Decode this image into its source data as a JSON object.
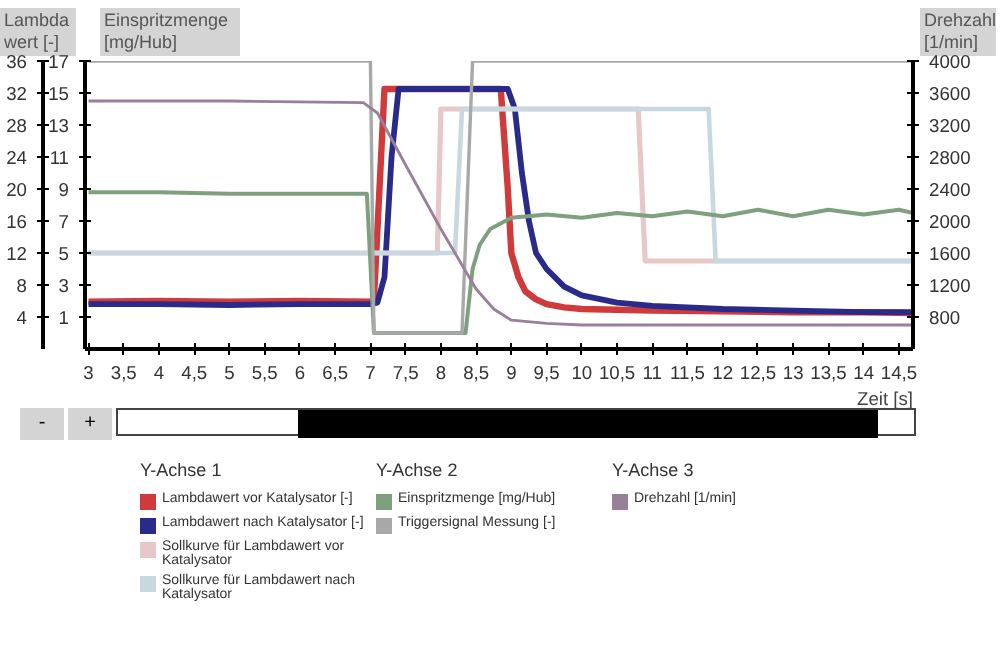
{
  "chart_data": {
    "type": "line",
    "ylabel": "Lambdawert [-]",
    "y2label": "Einspritzmenge [mg/Hub]",
    "y3label": "Drehzahl [1/min]",
    "xlabel": "Zeit [s]",
    "annotations": [
      "-",
      "+",
      "Y-Achse 1",
      "Y-Achse 2",
      "Y-Achse 3"
    ],
    "xlim": [
      2.95,
      14.7
    ],
    "xticks": [
      3,
      {
        "value": 3.5,
        "label": "3,5"
      },
      4,
      {
        "value": 4.5,
        "label": "4,5"
      },
      5,
      {
        "value": 5.5,
        "label": "5,5"
      },
      6,
      {
        "value": 6.5,
        "label": "6,5"
      },
      7,
      {
        "value": 7.5,
        "label": "7,5"
      },
      8,
      {
        "value": 8.5,
        "label": "8,5"
      },
      9,
      {
        "value": 9.5,
        "label": "9,5"
      },
      10,
      {
        "value": 10.5,
        "label": "10,5"
      },
      11,
      {
        "value": 11.5,
        "label": "11,5"
      },
      12,
      {
        "value": 12.5,
        "label": "12,5"
      },
      13,
      {
        "value": 13.5,
        "label": "13,5"
      },
      14,
      {
        "value": 14.5,
        "label": "14,5"
      }
    ],
    "ylim": [
      0,
      36
    ],
    "yticks": [
      4,
      8,
      12,
      16,
      20,
      24,
      28,
      32,
      36
    ],
    "y2lim": [
      -1,
      17
    ],
    "y2ticks": [
      1,
      3,
      5,
      7,
      9,
      11,
      13,
      15,
      17
    ],
    "y3lim": [
      400,
      4000
    ],
    "y3ticks": [
      800,
      1200,
      1600,
      2000,
      2400,
      2800,
      3200,
      3600,
      4000
    ],
    "grid": false,
    "legend": "bottom",
    "marker": "none",
    "line_style": "solid",
    "series": [
      {
        "name": "Lambdawert vor Katalysator [-]",
        "color": "#d03a3a",
        "axis": "y",
        "x": [
          3,
          4,
          5,
          6,
          7,
          7.05,
          7.2,
          8.85,
          8.95,
          9.0,
          9.1,
          9.2,
          9.35,
          9.5,
          9.75,
          10,
          10.5,
          11,
          12,
          13,
          14,
          14.7
        ],
        "values": [
          5.9,
          6.0,
          5.9,
          6.0,
          5.9,
          6.2,
          32.5,
          32.5,
          20,
          12,
          9,
          7.2,
          6.2,
          5.6,
          5.2,
          5.0,
          4.9,
          4.8,
          4.7,
          4.6,
          4.6,
          4.5
        ]
      },
      {
        "name": "Lambdawert nach Katalysator [-]",
        "color": "#2a2a8a",
        "axis": "y",
        "x": [
          3,
          4,
          5,
          6,
          7,
          7.1,
          7.2,
          7.3,
          7.4,
          8.95,
          9.05,
          9.15,
          9.25,
          9.35,
          9.5,
          9.75,
          10,
          10.5,
          11,
          12,
          13,
          14,
          14.7
        ],
        "values": [
          5.6,
          5.6,
          5.5,
          5.6,
          5.6,
          5.8,
          9,
          24,
          32.5,
          32.5,
          30,
          22,
          16,
          12,
          10,
          7.8,
          6.7,
          5.8,
          5.4,
          5.0,
          4.8,
          4.6,
          4.6
        ]
      },
      {
        "name": "Sollkurve für Lambdawert vor Katalysator",
        "color": "#e6c8c8",
        "axis": "y",
        "x": [
          3,
          7.95,
          8.0,
          10.8,
          10.9,
          14.7
        ],
        "values": [
          12,
          12,
          30,
          30,
          11,
          11
        ]
      },
      {
        "name": "Sollkurve für Lambdawert nach Katalysator",
        "color": "#c8d8e0",
        "axis": "y",
        "x": [
          3,
          8.2,
          8.3,
          11.8,
          11.9,
          14.7
        ],
        "values": [
          12,
          12,
          30,
          30,
          11,
          11
        ]
      },
      {
        "name": "Einspritzmenge [mg/Hub]",
        "color": "#7fa07f",
        "axis": "y2",
        "x": [
          3,
          4,
          5,
          6,
          6.95,
          7.05,
          8.35,
          8.45,
          8.55,
          8.7,
          9,
          9.5,
          10,
          10.5,
          11,
          11.5,
          12,
          12.5,
          13,
          13.5,
          14,
          14.5,
          14.7
        ],
        "values": [
          8.8,
          8.8,
          8.7,
          8.7,
          8.7,
          0,
          0,
          4,
          5.5,
          6.5,
          7.2,
          7.4,
          7.2,
          7.5,
          7.3,
          7.6,
          7.3,
          7.7,
          7.3,
          7.7,
          7.4,
          7.7,
          7.5
        ]
      },
      {
        "name": "Triggersignal Messung [-]",
        "color": "#a8a8a8",
        "axis": "y2",
        "x": [
          3,
          7.0,
          7.05,
          8.3,
          8.45,
          14.7
        ],
        "values": [
          17,
          17,
          0,
          0,
          17,
          17
        ]
      },
      {
        "name": "Drehzahl [1/min]",
        "color": "#9a7f9a",
        "axis": "y3",
        "x": [
          3,
          5,
          6.9,
          7.1,
          7.5,
          8,
          8.5,
          8.75,
          9,
          9.5,
          10,
          12,
          14.7
        ],
        "values": [
          3500,
          3500,
          3480,
          3350,
          2700,
          1900,
          1150,
          900,
          760,
          720,
          700,
          700,
          700
        ]
      }
    ]
  }
}
